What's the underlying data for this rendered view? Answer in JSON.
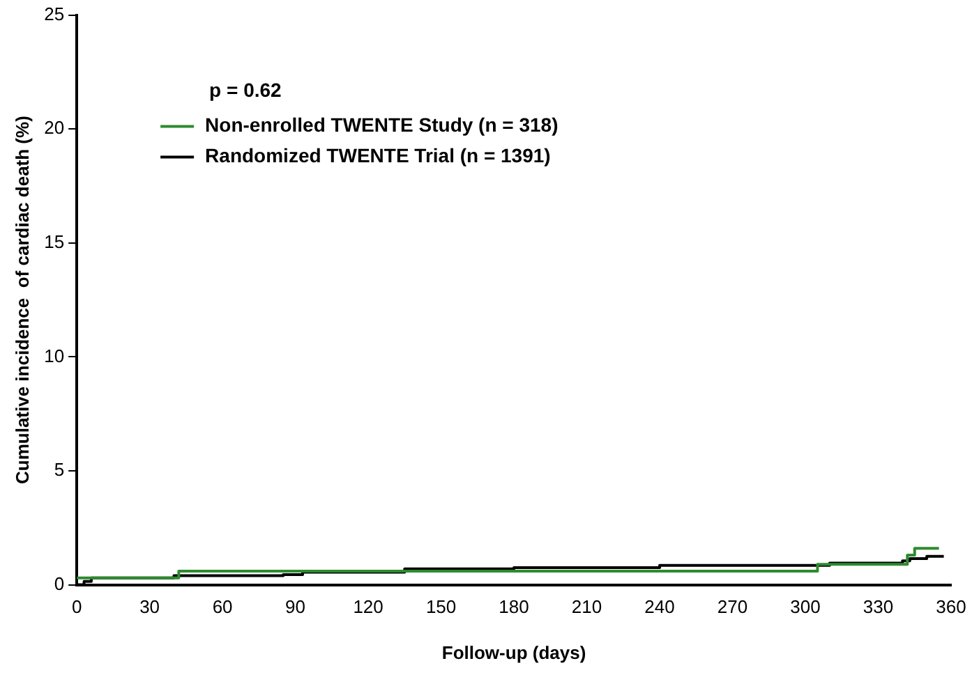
{
  "chart_data": {
    "type": "step",
    "xlabel": "Follow-up (days)",
    "ylabel": "Cumulative incidence  of cardiac death (%)",
    "annotations": [
      "p = 0.62"
    ],
    "xlim": [
      0,
      360
    ],
    "xticks": [
      0,
      30,
      60,
      90,
      120,
      150,
      180,
      210,
      240,
      270,
      300,
      330,
      360
    ],
    "ylim": [
      0,
      25
    ],
    "yticks": [
      0,
      5,
      10,
      15,
      20,
      25
    ],
    "grid": false,
    "legend": "top left",
    "line_style": "solid",
    "marker": "none",
    "series": [
      {
        "name": "Non-enrolled TWENTE Study (n = 318)",
        "color": "#2e8b2e",
        "x": [
          0,
          42,
          305,
          342,
          345,
          355
        ],
        "values": [
          0.3,
          0.6,
          0.9,
          1.3,
          1.6,
          1.6
        ]
      },
      {
        "name": "Randomized TWENTE Trial (n = 1391)",
        "color": "#000000",
        "x": [
          0,
          3,
          6,
          40,
          85,
          93,
          135,
          180,
          240,
          310,
          340,
          343,
          350,
          357
        ],
        "values": [
          0,
          0.15,
          0.3,
          0.4,
          0.45,
          0.55,
          0.7,
          0.75,
          0.85,
          0.95,
          1.05,
          1.15,
          1.25,
          1.25
        ]
      }
    ]
  }
}
